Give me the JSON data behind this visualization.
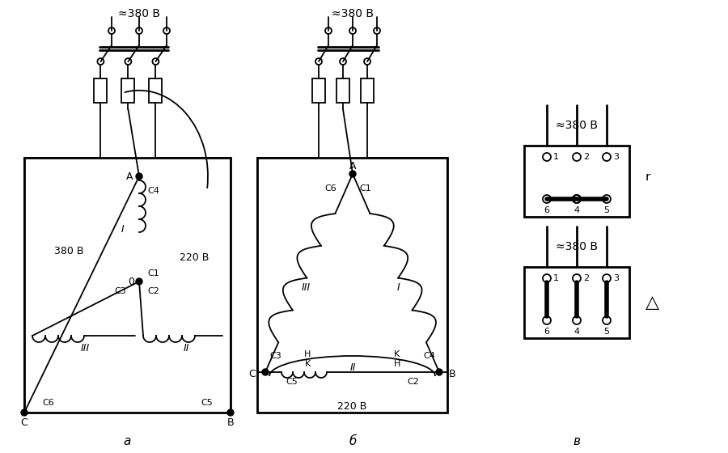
{
  "bg_color": "#ffffff",
  "line_color": "#000000",
  "fig_width": 9.0,
  "fig_height": 5.6,
  "dpi": 100,
  "voltage_380": "≈380 В",
  "voltage_220": "220 В",
  "voltage_380b": "380 В"
}
